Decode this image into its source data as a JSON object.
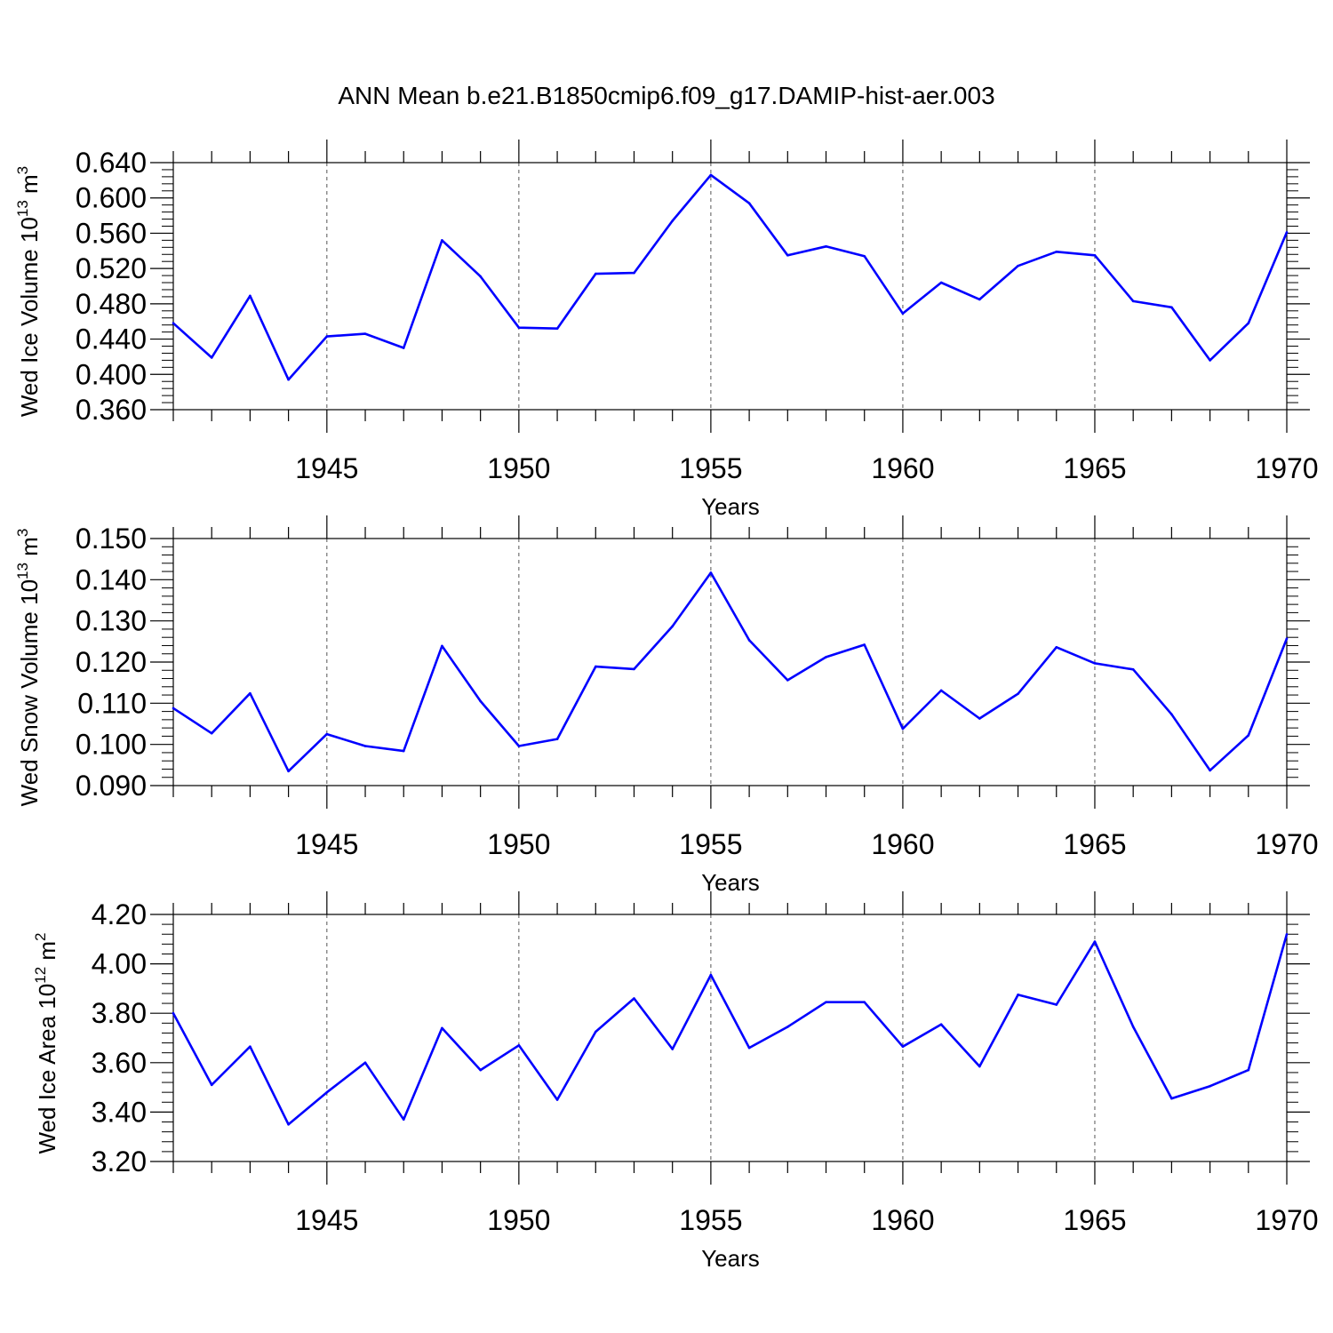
{
  "title": "ANN Mean b.e21.B1850cmip6.f09_g17.DAMIP-hist-aer.003",
  "colors": {
    "series": "#0000ff",
    "axis": "#000000",
    "grid": "#555555"
  },
  "chart_data": [
    {
      "type": "line",
      "ylabel_main": "Wed Ice Volume 10",
      "ylabel_exp": "13",
      "ylabel_unit": "m",
      "ylabel_unit_exp": "3",
      "xlabel": "Years",
      "xlim": [
        1941,
        1970
      ],
      "ylim": [
        0.36,
        0.64
      ],
      "yticks": [
        "0.360",
        "0.400",
        "0.440",
        "0.480",
        "0.520",
        "0.560",
        "0.600",
        "0.640"
      ],
      "xticks": [
        "1945",
        "1950",
        "1955",
        "1960",
        "1965",
        "1970"
      ],
      "grid": "vertical dashed at major x ticks",
      "x": [
        1941,
        1942,
        1943,
        1944,
        1945,
        1946,
        1947,
        1948,
        1949,
        1950,
        1951,
        1952,
        1953,
        1954,
        1955,
        1956,
        1957,
        1958,
        1959,
        1960,
        1961,
        1962,
        1963,
        1964,
        1965,
        1966,
        1967,
        1968,
        1969,
        1970
      ],
      "values": [
        0.458,
        0.419,
        0.489,
        0.394,
        0.443,
        0.446,
        0.43,
        0.552,
        0.511,
        0.453,
        0.452,
        0.514,
        0.515,
        0.574,
        0.626,
        0.594,
        0.535,
        0.545,
        0.534,
        0.469,
        0.504,
        0.485,
        0.523,
        0.539,
        0.535,
        0.483,
        0.476,
        0.416,
        0.458,
        0.561
      ]
    },
    {
      "type": "line",
      "ylabel_main": "Wed Snow Volume 10",
      "ylabel_exp": "13",
      "ylabel_unit": "m",
      "ylabel_unit_exp": "3",
      "xlabel": "Years",
      "xlim": [
        1941,
        1970
      ],
      "ylim": [
        0.09,
        0.15
      ],
      "yticks": [
        "0.090",
        "0.100",
        "0.110",
        "0.120",
        "0.130",
        "0.140",
        "0.150"
      ],
      "xticks": [
        "1945",
        "1950",
        "1955",
        "1960",
        "1965",
        "1970"
      ],
      "grid": "vertical dashed at major x ticks",
      "x": [
        1941,
        1942,
        1943,
        1944,
        1945,
        1946,
        1947,
        1948,
        1949,
        1950,
        1951,
        1952,
        1953,
        1954,
        1955,
        1956,
        1957,
        1958,
        1959,
        1960,
        1961,
        1962,
        1963,
        1964,
        1965,
        1966,
        1967,
        1968,
        1969,
        1970
      ],
      "values": [
        0.1088,
        0.1027,
        0.1124,
        0.0935,
        0.1025,
        0.0996,
        0.0984,
        0.1239,
        0.1105,
        0.0996,
        0.1013,
        0.1189,
        0.1183,
        0.1287,
        0.1417,
        0.1253,
        0.1156,
        0.1212,
        0.1242,
        0.1038,
        0.1131,
        0.1063,
        0.1123,
        0.1236,
        0.1197,
        0.1182,
        0.1073,
        0.0937,
        0.1022,
        0.1257
      ]
    },
    {
      "type": "line",
      "ylabel_main": "Wed Ice Area 10",
      "ylabel_exp": "12",
      "ylabel_unit": "m",
      "ylabel_unit_exp": "2",
      "xlabel": "Years",
      "xlim": [
        1941,
        1970
      ],
      "ylim": [
        3.2,
        4.2
      ],
      "yticks": [
        "3.20",
        "3.40",
        "3.60",
        "3.80",
        "4.00",
        "4.20"
      ],
      "xticks": [
        "1945",
        "1950",
        "1955",
        "1960",
        "1965",
        "1970"
      ],
      "grid": "vertical dashed at major x ticks",
      "x": [
        1941,
        1942,
        1943,
        1944,
        1945,
        1946,
        1947,
        1948,
        1949,
        1950,
        1951,
        1952,
        1953,
        1954,
        1955,
        1956,
        1957,
        1958,
        1959,
        1960,
        1961,
        1962,
        1963,
        1964,
        1965,
        1966,
        1967,
        1968,
        1969,
        1970
      ],
      "values": [
        3.8,
        3.51,
        3.665,
        3.35,
        3.48,
        3.6,
        3.37,
        3.74,
        3.57,
        3.67,
        3.45,
        3.725,
        3.86,
        3.655,
        3.955,
        3.66,
        3.745,
        3.845,
        3.845,
        3.665,
        3.755,
        3.585,
        3.875,
        3.835,
        4.09,
        3.745,
        3.455,
        3.505,
        3.57,
        4.12
      ]
    }
  ]
}
